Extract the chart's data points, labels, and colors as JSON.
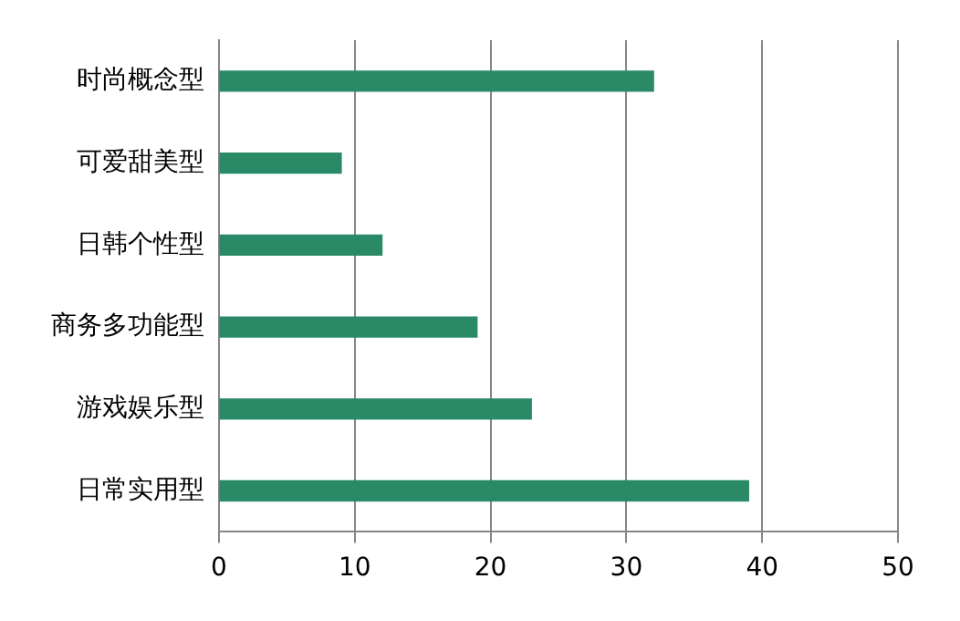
{
  "chart_data": {
    "type": "bar",
    "orientation": "horizontal",
    "categories": [
      "时尚概念型",
      "可爱甜美型",
      "日韩个性型",
      "商务多功能型",
      "游戏娱乐型",
      "日常实用型"
    ],
    "values": [
      32,
      9,
      12,
      19,
      23,
      39
    ],
    "color": "#2a8a68",
    "xlim": [
      0,
      50
    ],
    "xticks": [
      0,
      10,
      20,
      30,
      40,
      50
    ],
    "grid": "x",
    "legend": false
  }
}
